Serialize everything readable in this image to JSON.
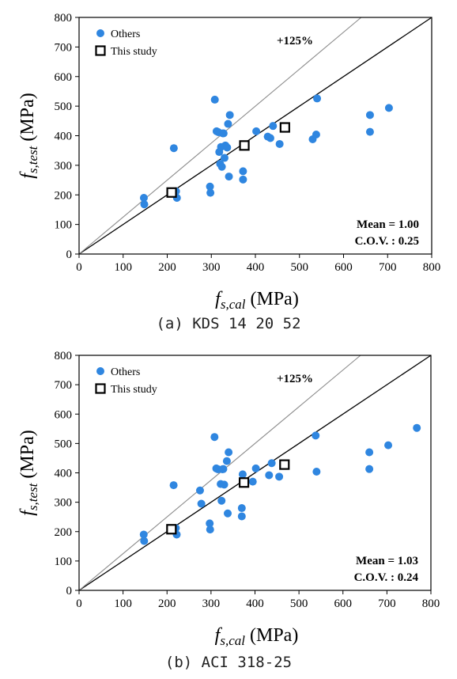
{
  "captions": [
    "(a) KDS 14 20 52",
    "(b) ACI 318-25"
  ],
  "chart_data": [
    {
      "type": "scatter",
      "xlabel": {
        "sym": "f",
        "sub": "s,cal",
        "unit": " (MPa)"
      },
      "ylabel": {
        "sym": "f",
        "sub": "s,test",
        "unit": " (MPa)"
      },
      "xlim": [
        0,
        800
      ],
      "ylim": [
        0,
        800
      ],
      "xticks": [
        "0",
        "100",
        "200",
        "300",
        "400",
        "500",
        "600",
        "700",
        "800"
      ],
      "yticks": [
        "0",
        "100",
        "200",
        "300",
        "400",
        "500",
        "600",
        "700",
        "800"
      ],
      "grid": false,
      "legend_position": "top-left",
      "reference_lines": [
        {
          "label": "",
          "slope": 1.0,
          "color": "#000000"
        },
        {
          "label": "+125%",
          "slope": 1.25,
          "color": "#8c8c8c"
        }
      ],
      "annotation": "+125%",
      "stats": [
        "Mean = 1.00",
        "C.O.V. : 0.25"
      ],
      "series": [
        {
          "name": "Others",
          "marker": "circle",
          "color": "#2f86e0",
          "x": [
            147,
            148,
            215,
            220,
            222,
            297,
            298,
            308,
            312,
            316,
            318,
            320,
            322,
            324,
            326,
            328,
            330,
            332,
            336,
            338,
            340,
            342,
            372,
            372,
            402,
            428,
            434,
            440,
            455,
            530,
            538,
            540,
            660,
            660,
            703
          ],
          "y": [
            190,
            168,
            358,
            212,
            190,
            228,
            207,
            522,
            415,
            412,
            345,
            305,
            362,
            295,
            408,
            408,
            325,
            367,
            360,
            440,
            262,
            470,
            280,
            252,
            415,
            397,
            392,
            433,
            372,
            388,
            404,
            526,
            470,
            413,
            494
          ]
        },
        {
          "name": "This study",
          "marker": "square",
          "color": "#000000",
          "x": [
            210,
            375,
            467
          ],
          "y": [
            208,
            367,
            428
          ]
        }
      ]
    },
    {
      "type": "scatter",
      "xlabel": {
        "sym": "f",
        "sub": "s,cal",
        "unit": " (MPa)"
      },
      "ylabel": {
        "sym": "f",
        "sub": "s,test",
        "unit": " (MPa)"
      },
      "xlim": [
        0,
        800
      ],
      "ylim": [
        0,
        800
      ],
      "xticks": [
        "0",
        "100",
        "200",
        "300",
        "400",
        "500",
        "600",
        "700",
        "800"
      ],
      "yticks": [
        "0",
        "100",
        "200",
        "300",
        "400",
        "500",
        "600",
        "700",
        "800"
      ],
      "grid": false,
      "legend_position": "top-left",
      "reference_lines": [
        {
          "label": "",
          "slope": 1.0,
          "color": "#000000"
        },
        {
          "label": "+125%",
          "slope": 1.25,
          "color": "#8c8c8c"
        }
      ],
      "annotation": "+125%",
      "stats": [
        "Mean = 1.03",
        "C.O.V. : 0.24"
      ],
      "series": [
        {
          "name": "Others",
          "marker": "circle",
          "color": "#2f86e0",
          "x": [
            147,
            148,
            215,
            220,
            222,
            297,
            298,
            308,
            312,
            316,
            275,
            278,
            322,
            324,
            326,
            328,
            330,
            336,
            338,
            340,
            370,
            370,
            372,
            395,
            402,
            432,
            438,
            455,
            538,
            540,
            660,
            660,
            703,
            768
          ],
          "y": [
            190,
            168,
            358,
            212,
            190,
            228,
            207,
            522,
            415,
            412,
            340,
            295,
            362,
            305,
            412,
            413,
            360,
            440,
            262,
            470,
            280,
            252,
            395,
            370,
            415,
            392,
            433,
            387,
            527,
            404,
            470,
            413,
            494,
            553
          ]
        },
        {
          "name": "This study",
          "marker": "square",
          "color": "#000000",
          "x": [
            210,
            375,
            467
          ],
          "y": [
            208,
            367,
            428
          ]
        }
      ]
    }
  ]
}
